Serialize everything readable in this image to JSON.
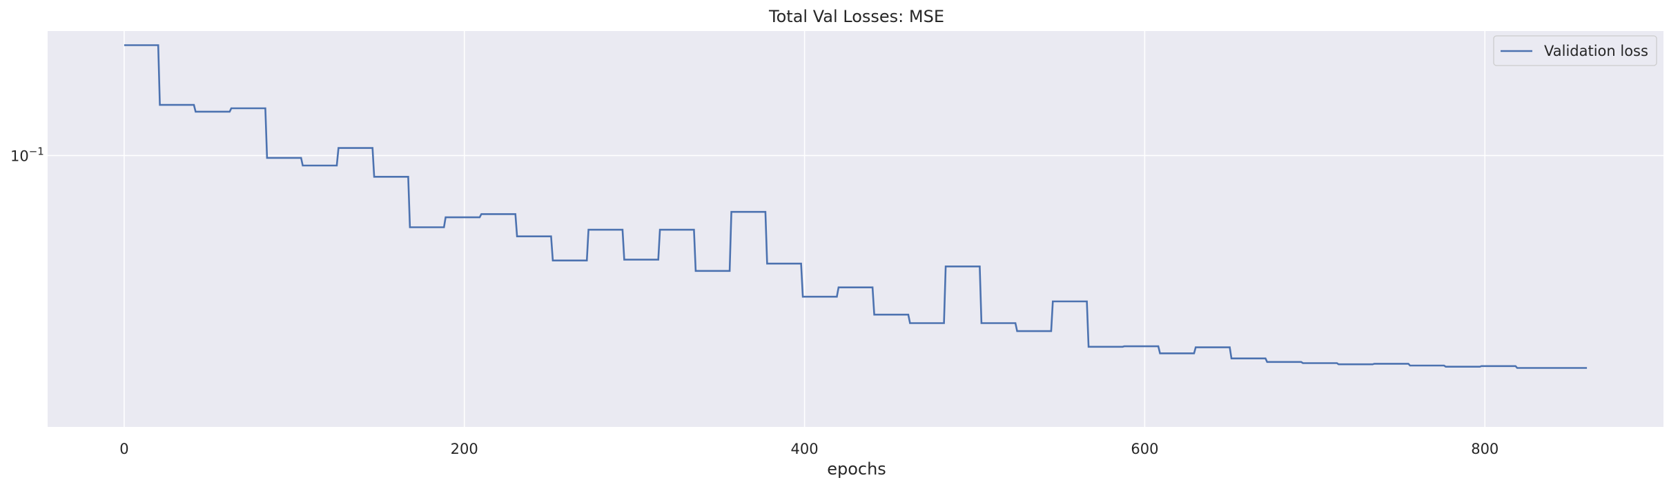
{
  "chart_data": {
    "type": "line",
    "title": "Total Val Losses:  MSE",
    "xlabel": "epochs",
    "ylabel": "",
    "xlim": [
      -45,
      905
    ],
    "ylim": [
      0.0171,
      0.2248
    ],
    "yscale": "log",
    "x_ticks": [
      0,
      200,
      400,
      600,
      800
    ],
    "y_ticks": [
      {
        "value": 0.1,
        "base": "10",
        "exp": "−1"
      }
    ],
    "grid": true,
    "legend_position": "top-right",
    "colors": {
      "background": "#eaeaf2",
      "grid": "#ffffff",
      "line": "#4c72b0"
    },
    "series": [
      {
        "name": "Validation loss",
        "color": "#4c72b0",
        "x": [
          0,
          20,
          21,
          41,
          42,
          62,
          63,
          83,
          84,
          104,
          105,
          125,
          126,
          146,
          147,
          167,
          168,
          188,
          189,
          209,
          210,
          230,
          231,
          251,
          252,
          272,
          273,
          293,
          294,
          314,
          315,
          335,
          336,
          356,
          357,
          377,
          378,
          398,
          399,
          419,
          420,
          440,
          441,
          461,
          462,
          482,
          483,
          503,
          504,
          524,
          525,
          545,
          546,
          566,
          567,
          587,
          588,
          608,
          609,
          629,
          630,
          650,
          651,
          671,
          672,
          692,
          693,
          713,
          714,
          734,
          735,
          755,
          756,
          776,
          777,
          797,
          798,
          818,
          819,
          839,
          840,
          860
        ],
        "y": [
          0.205,
          0.205,
          0.139,
          0.139,
          0.133,
          0.133,
          0.136,
          0.136,
          0.0985,
          0.0985,
          0.0937,
          0.0937,
          0.105,
          0.105,
          0.0871,
          0.0871,
          0.0627,
          0.0627,
          0.0669,
          0.0669,
          0.0683,
          0.0683,
          0.0591,
          0.0591,
          0.0505,
          0.0505,
          0.0617,
          0.0617,
          0.0508,
          0.0508,
          0.0617,
          0.0617,
          0.0472,
          0.0472,
          0.0693,
          0.0693,
          0.0495,
          0.0495,
          0.0399,
          0.0399,
          0.0424,
          0.0424,
          0.0355,
          0.0355,
          0.0336,
          0.0336,
          0.0486,
          0.0486,
          0.0336,
          0.0336,
          0.0319,
          0.0319,
          0.0387,
          0.0387,
          0.0288,
          0.0288,
          0.0289,
          0.0289,
          0.0276,
          0.0276,
          0.0287,
          0.0287,
          0.0267,
          0.0267,
          0.0261,
          0.0261,
          0.0259,
          0.0259,
          0.0257,
          0.0257,
          0.0258,
          0.0258,
          0.0255,
          0.0255,
          0.0253,
          0.0253,
          0.0254,
          0.0254,
          0.0251,
          0.0251,
          0.0251,
          0.0251
        ]
      }
    ]
  }
}
